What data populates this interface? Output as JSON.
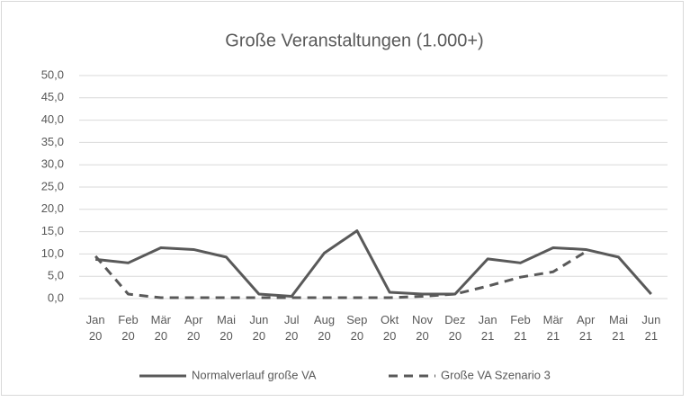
{
  "chart_data": {
    "type": "line",
    "title": "Große Veranstaltungen (1.000+)",
    "categories": [
      "Jan 20",
      "Feb 20",
      "Mär 20",
      "Apr 20",
      "Mai 20",
      "Jun 20",
      "Jul 20",
      "Aug 20",
      "Sep 20",
      "Okt 20",
      "Nov 20",
      "Dez 20",
      "Jan 21",
      "Feb 21",
      "Mär 21",
      "Apr 21",
      "Mai 21",
      "Jun 21"
    ],
    "series": [
      {
        "name": "Normalverlauf große VA",
        "color": "#595959",
        "dash": false,
        "values": [
          8.8,
          8.0,
          11.4,
          11.0,
          9.3,
          1.0,
          0.5,
          10.2,
          15.2,
          1.4,
          1.0,
          1.0,
          8.9,
          8.0,
          11.4,
          11.0,
          9.3,
          1.0
        ]
      },
      {
        "name": "Große VA Szenario 3",
        "color": "#595959",
        "dash": true,
        "values": [
          9.5,
          1.0,
          0.2,
          0.2,
          0.2,
          0.2,
          0.2,
          0.2,
          0.2,
          0.2,
          0.5,
          1.0,
          2.8,
          4.8,
          6.0,
          10.5,
          null,
          null
        ]
      }
    ],
    "ylim": [
      0,
      50
    ],
    "yticks": [
      {
        "value": 0,
        "label": "0,0"
      },
      {
        "value": 5,
        "label": "5,0"
      },
      {
        "value": 10,
        "label": "10,0"
      },
      {
        "value": 15,
        "label": "15,0"
      },
      {
        "value": 20,
        "label": "20,0"
      },
      {
        "value": 25,
        "label": "25,0"
      },
      {
        "value": 30,
        "label": "30,0"
      },
      {
        "value": 35,
        "label": "35,0"
      },
      {
        "value": 40,
        "label": "40,0"
      },
      {
        "value": 45,
        "label": "45,0"
      },
      {
        "value": 50,
        "label": "50,0"
      }
    ],
    "grid": true,
    "legend": "bottom"
  }
}
